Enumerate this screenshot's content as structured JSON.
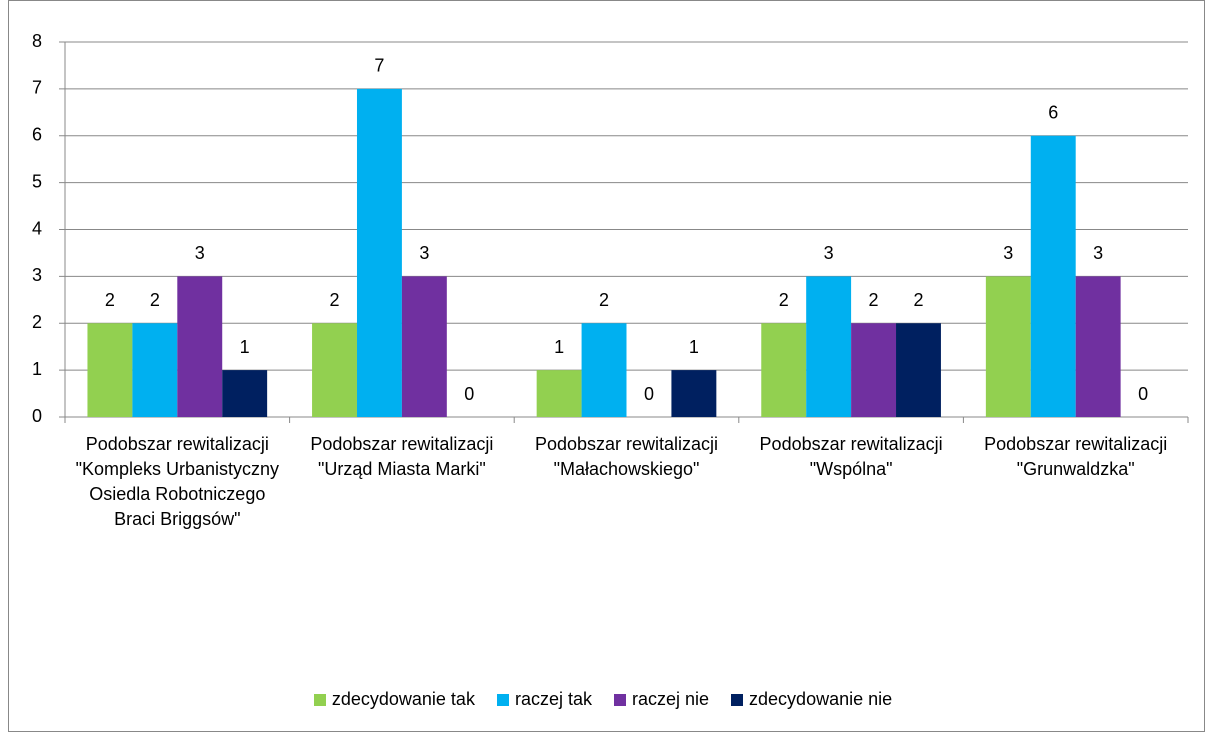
{
  "chart_data": {
    "type": "bar",
    "categories": [
      "Podobszar rewitalizacji \"Kompleks Urbanistyczny Osiedla Robotniczego Braci Briggsów\"",
      "Podobszar rewitalizacji \"Urząd Miasta Marki\"",
      "Podobszar rewitalizacji \"Małachowskiego\"",
      "Podobszar rewitalizacji \"Wspólna\"",
      "Podobszar rewitalizacji \"Grunwaldzka\""
    ],
    "series": [
      {
        "name": "zdecydowanie tak",
        "color": "#92d050",
        "values": [
          2,
          2,
          1,
          2,
          3
        ]
      },
      {
        "name": "raczej tak",
        "color": "#00b0f0",
        "values": [
          2,
          7,
          2,
          3,
          6
        ]
      },
      {
        "name": "raczej nie",
        "color": "#7030a0",
        "values": [
          3,
          3,
          0,
          2,
          3
        ]
      },
      {
        "name": "zdecydowanie nie",
        "color": "#002060",
        "values": [
          1,
          0,
          1,
          2,
          0
        ]
      }
    ],
    "ylim": [
      0,
      8
    ],
    "yticks": [
      0,
      1,
      2,
      3,
      4,
      5,
      6,
      7,
      8
    ],
    "grid": true,
    "legend": "bottom"
  }
}
